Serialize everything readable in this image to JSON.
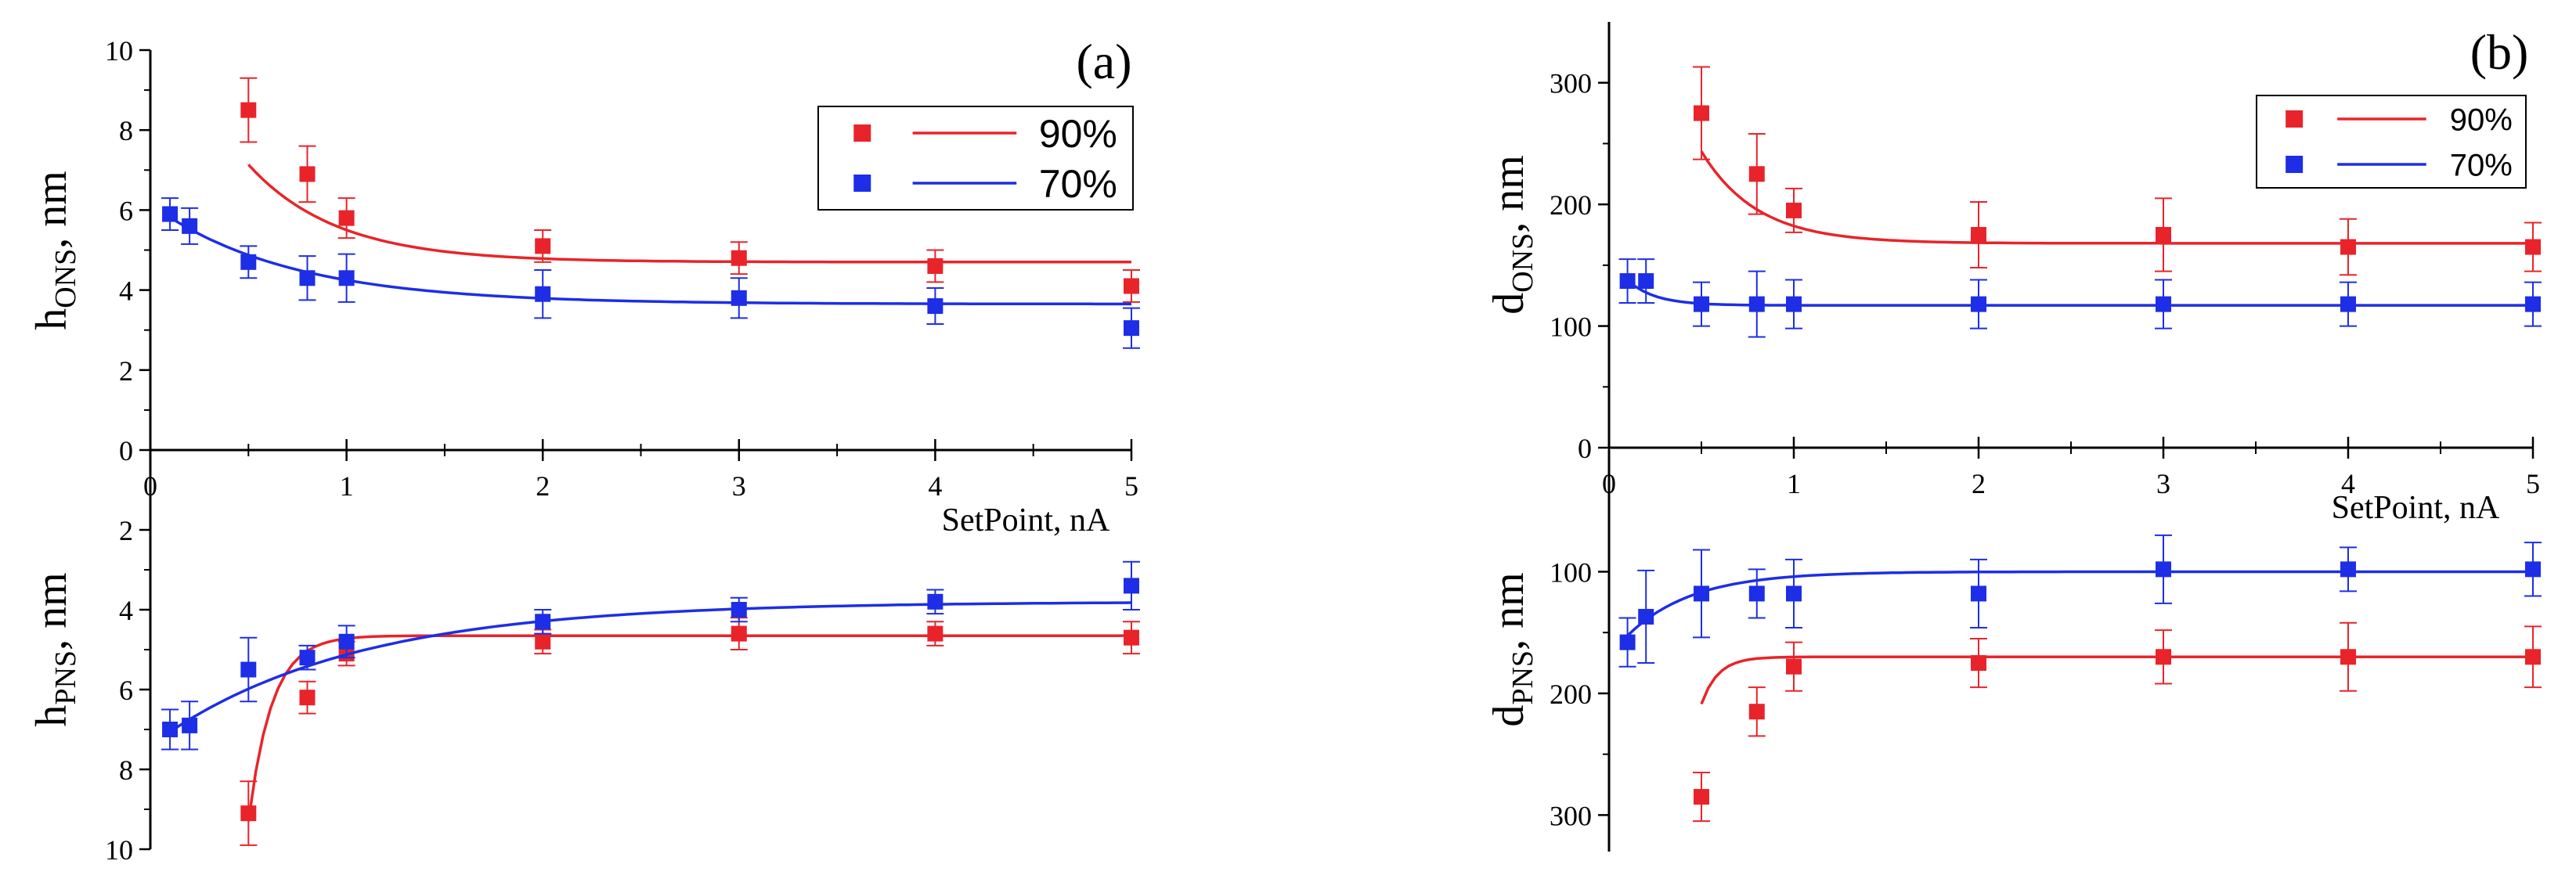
{
  "colors": {
    "red": "#e8242a",
    "blue": "#1d2ee6",
    "axis": "#000000"
  },
  "chart_data": [
    {
      "id": "a",
      "panel_label": "(a)",
      "type": "scatter",
      "xlabel": "SetPoint, nA",
      "x_ticks": [
        "0",
        "1",
        "2",
        "3",
        "4",
        "5"
      ],
      "legend": [
        "90%",
        "70%"
      ],
      "top": {
        "ylabel_main": "h",
        "ylabel_sub": "ONS",
        "ylabel_unit": ", nm",
        "ylim": [
          0,
          10
        ],
        "y_ticks": [
          "0",
          "2",
          "4",
          "6",
          "8",
          "10"
        ],
        "series": [
          {
            "name": "90%",
            "x": [
              0.5,
              0.8,
              1,
              2,
              3,
              4,
              5
            ],
            "y": [
              8.5,
              6.9,
              5.8,
              5.1,
              4.8,
              4.6,
              4.1
            ],
            "err": [
              0.8,
              0.7,
              0.5,
              0.4,
              0.4,
              0.4,
              0.4
            ],
            "fit": {
              "A": 4.7,
              "B": 7.4,
              "t": 0.45
            }
          },
          {
            "name": "70%",
            "x": [
              0.1,
              0.2,
              0.5,
              0.8,
              1,
              2,
              3,
              4,
              5
            ],
            "y": [
              5.9,
              5.6,
              4.7,
              4.3,
              4.3,
              3.9,
              3.8,
              3.6,
              3.05
            ],
            "err": [
              0.4,
              0.45,
              0.4,
              0.55,
              0.6,
              0.6,
              0.5,
              0.45,
              0.5
            ],
            "fit": {
              "A": 3.65,
              "B": 2.5,
              "t": 0.7
            }
          }
        ]
      },
      "bottom": {
        "ylabel_main": "h",
        "ylabel_sub": "PNS",
        "ylabel_unit": ", nm",
        "ylim": [
          0,
          10
        ],
        "y_ticks": [
          "2",
          "4",
          "6",
          "8",
          "10"
        ],
        "series": [
          {
            "name": "90%",
            "x": [
              0.5,
              0.8,
              1,
              2,
              3,
              4,
              5
            ],
            "y": [
              9.1,
              6.2,
              5.1,
              4.8,
              4.6,
              4.6,
              4.7
            ],
            "err": [
              0.8,
              0.4,
              0.3,
              0.3,
              0.4,
              0.3,
              0.4
            ],
            "fit": {
              "A": 4.65,
              "B": 300,
              "t": 0.12
            }
          },
          {
            "name": "70%",
            "x": [
              0.1,
              0.2,
              0.5,
              0.8,
              1,
              2,
              3,
              4,
              5
            ],
            "y": [
              7.0,
              6.9,
              5.5,
              5.2,
              4.8,
              4.3,
              4.0,
              3.8,
              3.4
            ],
            "err": [
              0.5,
              0.6,
              0.8,
              0.3,
              0.4,
              0.3,
              0.3,
              0.3,
              0.6
            ],
            "fit": {
              "A": 3.8,
              "B": 3.6,
              "t": 1.0
            }
          }
        ]
      }
    },
    {
      "id": "b",
      "panel_label": "(b)",
      "type": "scatter",
      "xlabel": "SetPoint, nA",
      "x_ticks": [
        "0",
        "1",
        "2",
        "3",
        "4",
        "5"
      ],
      "legend": [
        "90%",
        "70%"
      ],
      "top": {
        "ylabel_main": "d",
        "ylabel_sub": "ONS",
        "ylabel_unit": ", nm",
        "ylim": [
          0,
          350
        ],
        "y_ticks": [
          "0",
          "100",
          "200",
          "300"
        ],
        "series": [
          {
            "name": "90%",
            "x": [
              0.5,
              0.8,
              1,
              2,
              3,
              4,
              5
            ],
            "y": [
              275,
              225,
              195,
              175,
              175,
              165,
              165
            ],
            "err": [
              38,
              33,
              18,
              27,
              30,
              23,
              20
            ],
            "fit": {
              "A": 168,
              "B": 400,
              "t": 0.3
            }
          },
          {
            "name": "70%",
            "x": [
              0.1,
              0.2,
              0.5,
              0.8,
              1,
              2,
              3,
              4,
              5
            ],
            "y": [
              137,
              137,
              118,
              118,
              118,
              118,
              118,
              118,
              118
            ],
            "err": [
              18,
              18,
              18,
              27,
              20,
              20,
              20,
              18,
              18
            ],
            "fit": {
              "A": 117,
              "B": 40,
              "t": 0.15
            }
          }
        ]
      },
      "bottom": {
        "ylabel_main": "d",
        "ylabel_sub": "PNS",
        "ylabel_unit": ", nm",
        "ylim": [
          0,
          330
        ],
        "y_ticks": [
          "100",
          "200",
          "300"
        ],
        "series": [
          {
            "name": "90%",
            "x": [
              0.5,
              0.8,
              1,
              2,
              3,
              4,
              5
            ],
            "y": [
              285,
              215,
              178,
              175,
              170,
              170,
              170
            ],
            "err": [
              20,
              20,
              20,
              20,
              22,
              28,
              25
            ],
            "fit": {
              "A": 170,
              "B": 10000,
              "t": 0.09
            }
          },
          {
            "name": "70%",
            "x": [
              0.1,
              0.2,
              0.5,
              0.8,
              1,
              2,
              3,
              4,
              5
            ],
            "y": [
              158,
              137,
              118,
              118,
              118,
              118,
              98,
              98,
              98
            ],
            "err": [
              20,
              38,
              36,
              20,
              28,
              28,
              28,
              18,
              22
            ],
            "fit": {
              "A": 100,
              "B": 70,
              "t": 0.35
            }
          }
        ]
      }
    }
  ]
}
